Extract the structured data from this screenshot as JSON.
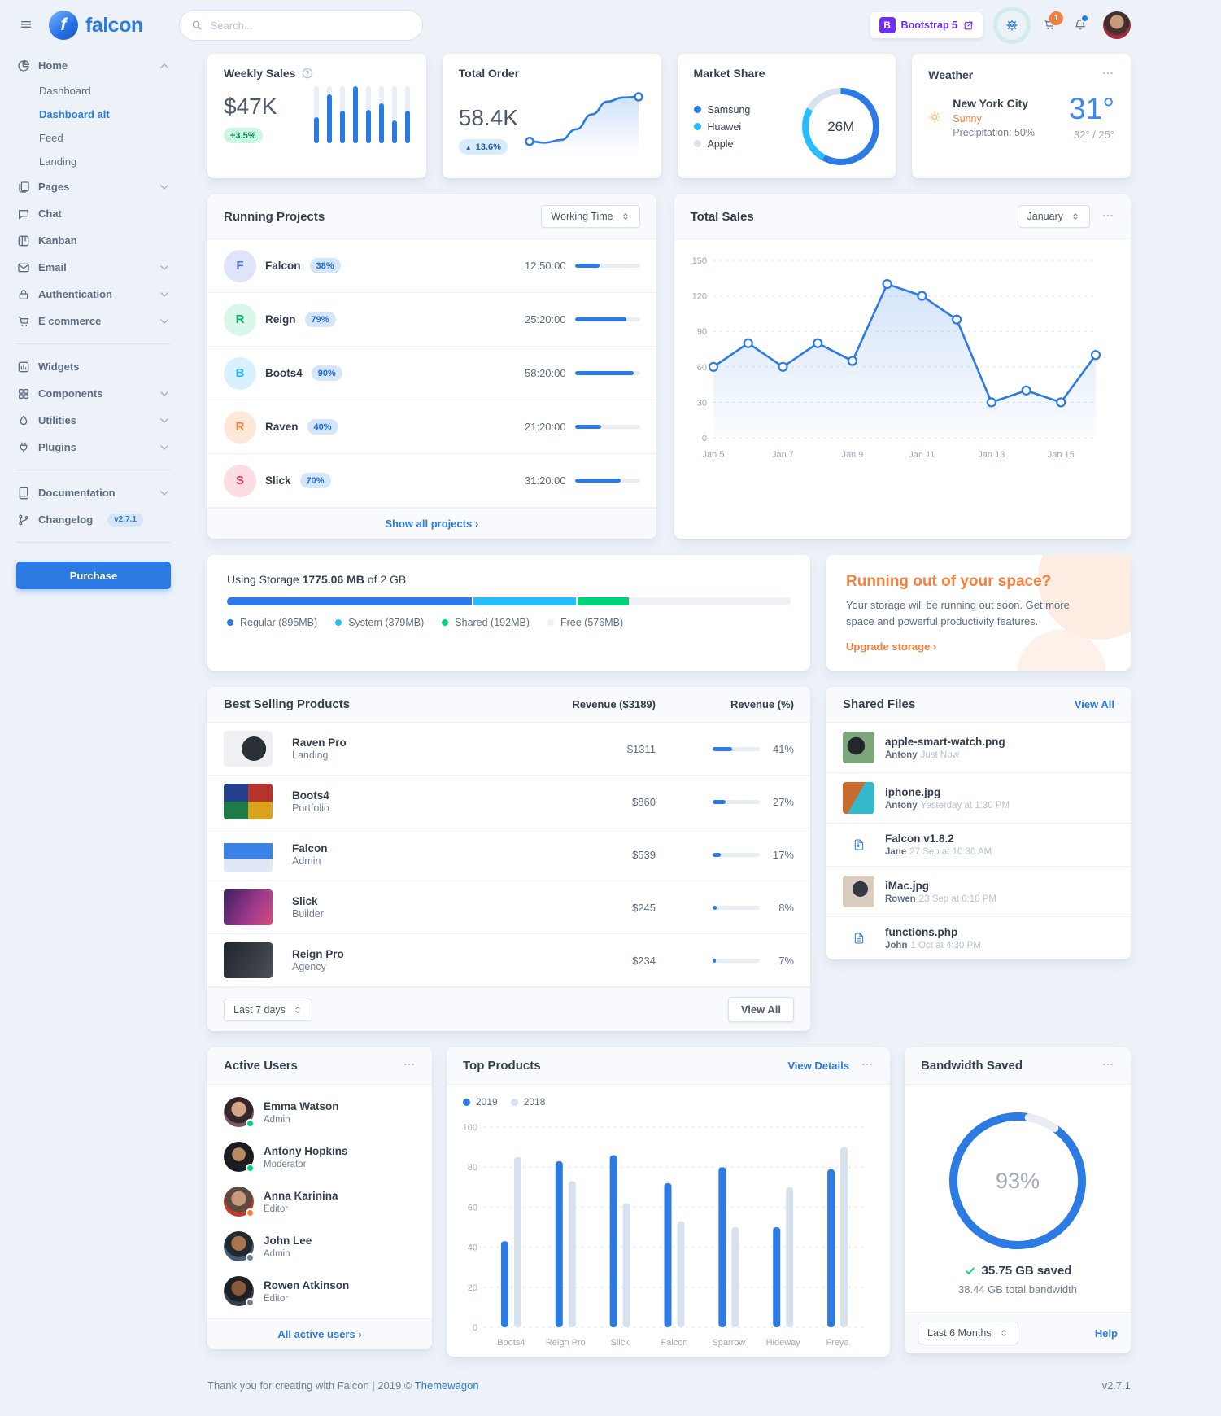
{
  "topbar": {
    "brand": "falcon",
    "brand_initial": "f",
    "search_placeholder": "Search...",
    "bootstrap_label": "Bootstrap 5",
    "cart_count": "1"
  },
  "sidebar": {
    "purchase_label": "Purchase",
    "items": [
      {
        "icon": "chart-pie",
        "label": "Home",
        "chevron": "chevron-up",
        "cls": "parent"
      },
      {
        "label": "Dashboard",
        "cls": "child"
      },
      {
        "label": "Dashboard alt",
        "cls": "child active"
      },
      {
        "label": "Feed",
        "cls": "child"
      },
      {
        "label": "Landing",
        "cls": "child"
      },
      {
        "icon": "pages",
        "label": "Pages",
        "chevron": "chevron-down",
        "cls": "parent"
      },
      {
        "icon": "chat",
        "label": "Chat",
        "cls": "parent"
      },
      {
        "icon": "kanban",
        "label": "Kanban",
        "cls": "parent"
      },
      {
        "icon": "email",
        "label": "Email",
        "chevron": "chevron-down",
        "cls": "parent"
      },
      {
        "icon": "lock",
        "label": "Authentication",
        "chevron": "chevron-down",
        "cls": "parent"
      },
      {
        "icon": "cart",
        "label": "E commerce",
        "chevron": "chevron-down",
        "cls": "parent"
      },
      {
        "divider": true
      },
      {
        "icon": "widgets",
        "label": "Widgets",
        "cls": "parent"
      },
      {
        "icon": "components",
        "label": "Components",
        "chevron": "chevron-down",
        "cls": "parent"
      },
      {
        "icon": "utilities",
        "label": "Utilities",
        "chevron": "chevron-down",
        "cls": "parent"
      },
      {
        "icon": "plugins",
        "label": "Plugins",
        "chevron": "chevron-down",
        "cls": "parent"
      },
      {
        "divider": true
      },
      {
        "icon": "documentation",
        "label": "Documentation",
        "chevron": "chevron-down",
        "cls": "parent"
      },
      {
        "icon": "changelog",
        "label": "Changelog",
        "badge": "v2.7.1",
        "cls": "parent"
      }
    ]
  },
  "cards": {
    "weekly_sales": {
      "title": "Weekly Sales",
      "value": "$47K",
      "badge": "+3.5%"
    },
    "total_order": {
      "title": "Total Order",
      "value": "58.4K",
      "badge_arrow": "▲",
      "badge": "13.6%"
    },
    "market_share": {
      "title": "Market Share",
      "center_label": "26M",
      "legend": [
        {
          "label": "Samsung",
          "color": "#2c7be5"
        },
        {
          "label": "Huawei",
          "color": "#27bcfd"
        },
        {
          "label": "Apple",
          "color": "#d8e2ef"
        }
      ]
    },
    "weather": {
      "title": "Weather",
      "city": "New York City",
      "condition": "Sunny",
      "precipitation": "Precipitation: 50%",
      "temp": "31°",
      "range": "32° / 25°"
    },
    "running_projects": {
      "title": "Running Projects",
      "filter": "Working Time",
      "footer_link": "Show all projects ›",
      "projects": [
        {
          "initial": "F",
          "name": "Falcon",
          "pct": "38%",
          "time": "12:50:00",
          "avatar_bg": "#dfe4fb",
          "avatar_color": "#4c6fe0"
        },
        {
          "initial": "R",
          "name": "Reign",
          "pct": "79%",
          "time": "25:20:00",
          "avatar_bg": "#d9f8e9",
          "avatar_color": "#00b56a"
        },
        {
          "initial": "B",
          "name": "Boots4",
          "pct": "90%",
          "time": "58:20:00",
          "avatar_bg": "#d9f1fe",
          "avatar_color": "#29b6f6"
        },
        {
          "initial": "R",
          "name": "Raven",
          "pct": "40%",
          "time": "21:20:00",
          "avatar_bg": "#fee9d9",
          "avatar_color": "#f5803e"
        },
        {
          "initial": "S",
          "name": "Slick",
          "pct": "70%",
          "time": "31:20:00",
          "avatar_bg": "#fbdde3",
          "avatar_color": "#e63757"
        }
      ]
    },
    "total_sales": {
      "title": "Total Sales",
      "month": "January"
    },
    "storage": {
      "prefix": "Using Storage",
      "used": "1775.06 MB",
      "suffix": "of 2 GB",
      "segments": [
        {
          "label": "Regular (895MB)",
          "width": "43.7%",
          "color": "#2a7be5"
        },
        {
          "label": "System (379MB)",
          "width": "18.5%",
          "color": "#27bcfd"
        },
        {
          "label": "Shared (192MB)",
          "width": "9.4%",
          "color": "#00d27a"
        },
        {
          "label": "Free (576MB)",
          "width": "28.4%",
          "color": "#eef2f7"
        }
      ]
    },
    "space_ad": {
      "title": "Running out of your space?",
      "body": "Your storage will be running out soon. Get more space and powerful productivity features.",
      "link": "Upgrade storage ›"
    },
    "best_selling": {
      "title": "Best Selling Products",
      "col_revenue": "Revenue ($3189)",
      "col_pct": "Revenue (%)",
      "filter": "Last 7 days",
      "view_all": "View All",
      "products": [
        {
          "name": "Raven Pro",
          "type": "Landing",
          "price": "$1311",
          "pct": "41%",
          "thumb": "t-raven"
        },
        {
          "name": "Boots4",
          "type": "Portfolio",
          "price": "$860",
          "pct": "27%",
          "thumb": "t-boots4"
        },
        {
          "name": "Falcon",
          "type": "Admin",
          "price": "$539",
          "pct": "17%",
          "thumb": "t-falcon"
        },
        {
          "name": "Slick",
          "type": "Builder",
          "price": "$245",
          "pct": "8%",
          "thumb": "t-slick"
        },
        {
          "name": "Reign Pro",
          "type": "Agency",
          "price": "$234",
          "pct": "7%",
          "thumb": "t-reign"
        }
      ]
    },
    "shared_files": {
      "title": "Shared Files",
      "view_all": "View All",
      "files": [
        {
          "name": "apple-smart-watch.png",
          "user": "Antony",
          "time": "Just Now",
          "thumb": "t-watch"
        },
        {
          "name": "iphone.jpg",
          "user": "Antony",
          "time": "Yesterday at 1:30 PM",
          "thumb": "t-iphone"
        },
        {
          "name": "Falcon v1.8.2",
          "user": "Jane",
          "time": "27 Sep at 10:30 AM",
          "icon": "file-archive"
        },
        {
          "name": "iMac.jpg",
          "user": "Rowen",
          "time": "23 Sep at 6:10 PM",
          "thumb": "t-imac"
        },
        {
          "name": "functions.php",
          "user": "John",
          "time": "1 Oct at 4:30 PM",
          "icon": "file-code"
        }
      ]
    },
    "active_users": {
      "title": "Active Users",
      "footer_link": "All active users ›",
      "users": [
        {
          "name": "Emma Watson",
          "role": "Admin",
          "status": "#00d27a",
          "avatar": "av-emma"
        },
        {
          "name": "Antony Hopkins",
          "role": "Moderator",
          "status": "#00d27a",
          "avatar": "av-antony"
        },
        {
          "name": "Anna Karinina",
          "role": "Editor",
          "status": "#f5803e",
          "avatar": "av-anna"
        },
        {
          "name": "John Lee",
          "role": "Admin",
          "status": "#748194",
          "avatar": "av-john"
        },
        {
          "name": "Rowen Atkinson",
          "role": "Editor",
          "status": "#748194",
          "avatar": "av-rowen"
        }
      ]
    },
    "top_products": {
      "title": "Top Products",
      "view_details": "View Details"
    },
    "bandwidth": {
      "title": "Bandwidth Saved",
      "center_label": "93%",
      "saved": "35.75 GB saved",
      "total": "38.44 GB total bandwidth",
      "filter": "Last 6 Months",
      "help": "Help"
    }
  },
  "footer": {
    "left": "Thank you for creating with Falcon | 2019 © ",
    "brand": "Themewagon",
    "version": "v2.7.1"
  },
  "chart_data": {
    "weekly_sales": {
      "type": "bar",
      "values": [
        40,
        75,
        50,
        88,
        52,
        62,
        35,
        50
      ],
      "color": "#2c7be5",
      "track": "#e8effb",
      "title": "Weekly Sales"
    },
    "total_order": {
      "type": "line",
      "values": [
        32,
        30,
        34,
        50,
        72,
        91,
        97,
        98
      ],
      "color": "#2c7be5",
      "title": "Total Order"
    },
    "market_share": {
      "type": "donut",
      "labels": [
        "Samsung",
        "Huawei",
        "Apple"
      ],
      "values": [
        58,
        25,
        17
      ],
      "colors": [
        "#2c7be5",
        "#27bcfd",
        "#d8e2ef"
      ],
      "center_label": "26M",
      "title": "Market Share"
    },
    "total_sales": {
      "type": "line",
      "title": "Total Sales",
      "x": [
        "Jan 5",
        "Jan 6",
        "Jan 7",
        "Jan 8",
        "Jan 9",
        "Jan 10",
        "Jan 11",
        "Jan 12",
        "Jan 13",
        "Jan 14",
        "Jan 15",
        "Jan 16"
      ],
      "values": [
        60,
        80,
        60,
        80,
        65,
        130,
        120,
        100,
        30,
        40,
        30,
        70
      ],
      "yticks": [
        0,
        30,
        60,
        90,
        120,
        150
      ],
      "ylim": [
        0,
        150
      ],
      "xtick_every": 2,
      "grid": "dashed",
      "legend": "none"
    },
    "top_products": {
      "type": "grouped-bar",
      "title": "Top Products",
      "categories": [
        "Boots4",
        "Reign Pro",
        "Slick",
        "Falcon",
        "Sparrow",
        "Hideway",
        "Freya"
      ],
      "series": [
        {
          "name": "2019",
          "color": "#2c7be5",
          "values": [
            43,
            83,
            86,
            72,
            80,
            50,
            79
          ]
        },
        {
          "name": "2018",
          "color": "#d8e2ef",
          "values": [
            85,
            73,
            62,
            53,
            50,
            70,
            90
          ]
        }
      ],
      "yticks": [
        0,
        20,
        40,
        60,
        80,
        100
      ],
      "ylim": [
        0,
        100
      ],
      "grid": "dashed",
      "legend_position": "top-left"
    },
    "bandwidth_saved": {
      "type": "donut",
      "values": [
        93,
        7
      ],
      "colors": [
        "#2c7be5",
        "#e9edf3"
      ],
      "center_label": "93%",
      "title": "Bandwidth Saved"
    }
  }
}
